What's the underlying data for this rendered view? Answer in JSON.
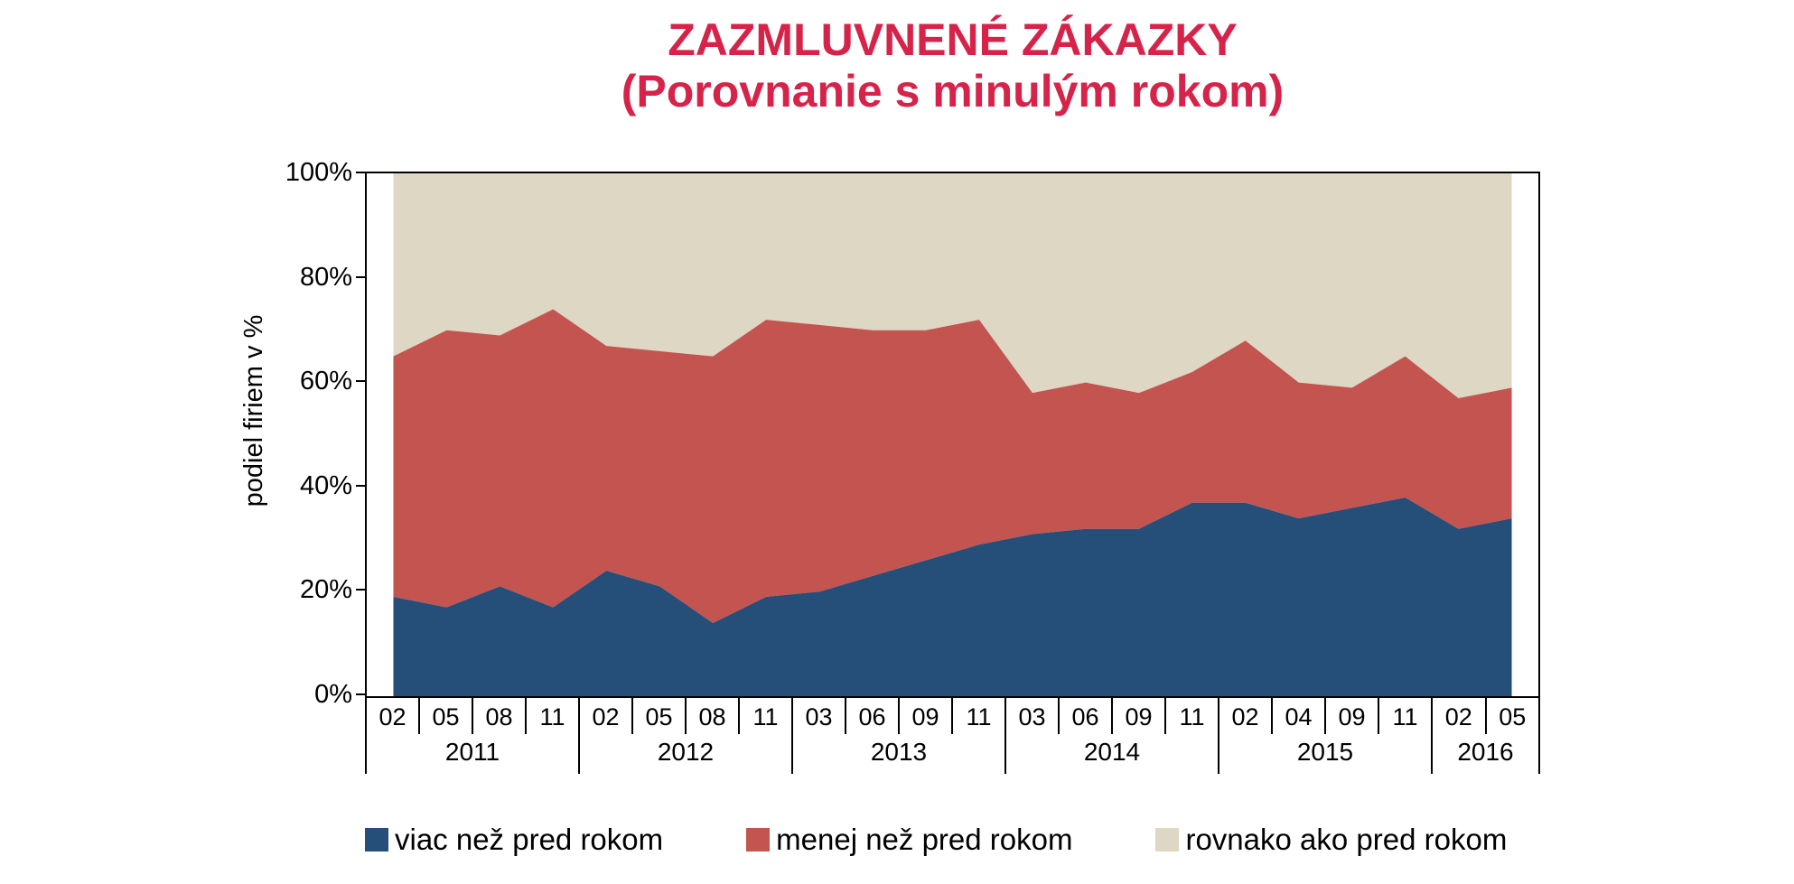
{
  "title": {
    "line1": "ZAZMLUVNENÉ ZÁKAZKY",
    "line2": "(Porovnanie s minulým rokom)",
    "color": "#d6234a"
  },
  "y_axis": {
    "label": "podiel firiem v %",
    "ticks": [
      "100%",
      "80%",
      "60%",
      "40%",
      "20%",
      "0%"
    ]
  },
  "x_axis": {
    "year_groups": [
      {
        "year": "2011",
        "months": [
          "02",
          "05",
          "08",
          "11"
        ]
      },
      {
        "year": "2012",
        "months": [
          "02",
          "05",
          "08",
          "11"
        ]
      },
      {
        "year": "2013",
        "months": [
          "03",
          "06",
          "09",
          "11"
        ]
      },
      {
        "year": "2014",
        "months": [
          "03",
          "06",
          "09",
          "11"
        ]
      },
      {
        "year": "2015",
        "months": [
          "02",
          "04",
          "09",
          "11"
        ]
      },
      {
        "year": "2016",
        "months": [
          "02",
          "05"
        ]
      }
    ]
  },
  "legend": [
    {
      "label": "viac než pred rokom",
      "color": "#254e78"
    },
    {
      "label": "menej než pred rokom",
      "color": "#c4544f"
    },
    {
      "label": "rovnako ako pred rokom",
      "color": "#ddd7c4"
    }
  ],
  "chart_data": {
    "type": "area",
    "stacked": true,
    "title": "ZAZMLUVNENÉ ZÁKAZKY (Porovnanie s minulým rokom)",
    "ylabel": "podiel firiem v %",
    "ylim": [
      0,
      100
    ],
    "grid": false,
    "legend_position": "bottom",
    "x": [
      "2011-02",
      "2011-05",
      "2011-08",
      "2011-11",
      "2012-02",
      "2012-05",
      "2012-08",
      "2012-11",
      "2013-03",
      "2013-06",
      "2013-09",
      "2013-11",
      "2014-03",
      "2014-06",
      "2014-09",
      "2014-11",
      "2015-02",
      "2015-04",
      "2015-09",
      "2015-11",
      "2016-02",
      "2016-05"
    ],
    "series": [
      {
        "name": "viac než pred rokom",
        "color": "#254e78",
        "values": [
          19,
          17,
          21,
          17,
          24,
          21,
          14,
          19,
          20,
          23,
          26,
          29,
          31,
          32,
          32,
          37,
          37,
          34,
          36,
          38,
          32,
          34
        ]
      },
      {
        "name": "menej než pred rokom",
        "color": "#c4544f",
        "values": [
          46,
          53,
          48,
          57,
          43,
          45,
          51,
          53,
          51,
          47,
          44,
          43,
          27,
          28,
          26,
          25,
          31,
          26,
          23,
          27,
          25,
          25
        ]
      },
      {
        "name": "rovnako ako pred rokom",
        "color": "#ddd7c4",
        "values": [
          35,
          30,
          31,
          26,
          33,
          34,
          35,
          28,
          29,
          30,
          30,
          28,
          42,
          40,
          42,
          38,
          32,
          40,
          41,
          35,
          43,
          41
        ]
      }
    ]
  }
}
